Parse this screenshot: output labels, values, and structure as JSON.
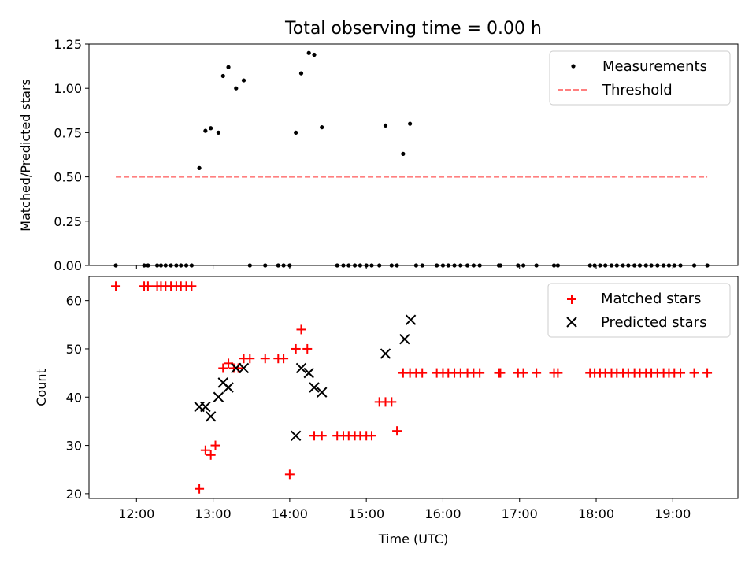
{
  "chart_data": [
    {
      "type": "scatter",
      "title": "Total observing time = 0.00 h",
      "xlabel": "",
      "ylabel": "Matched/Predicted stars",
      "xlim": [
        11.38,
        19.85
      ],
      "ylim": [
        0,
        1.25
      ],
      "yticks": [
        0,
        0.25,
        0.5,
        0.75,
        1.0,
        1.25
      ],
      "ytick_labels": [
        "0.00",
        "0.25",
        "0.50",
        "0.75",
        "1.00",
        "1.25"
      ],
      "xticks": [
        12,
        13,
        14,
        15,
        16,
        17,
        18,
        19
      ],
      "legend_position": "top-right",
      "series": [
        {
          "name": "Measurements",
          "marker": "dot",
          "color": "#000000",
          "x": [
            11.73,
            12.1,
            12.15,
            12.27,
            12.32,
            12.38,
            12.45,
            12.52,
            12.58,
            12.65,
            12.72,
            12.82,
            12.9,
            12.97,
            13.07,
            13.13,
            13.2,
            13.3,
            13.4,
            13.48,
            13.68,
            13.85,
            13.92,
            14.0,
            14.08,
            14.15,
            14.25,
            14.32,
            14.42,
            14.62,
            14.7,
            14.77,
            14.85,
            14.92,
            15.0,
            15.07,
            15.17,
            15.25,
            15.33,
            15.4,
            15.48,
            15.57,
            15.65,
            15.73,
            15.92,
            16.0,
            16.07,
            16.15,
            16.23,
            16.32,
            16.4,
            16.48,
            16.73,
            16.75,
            16.98,
            17.05,
            17.22,
            17.45,
            17.5,
            17.92,
            17.98,
            18.05,
            18.12,
            18.2,
            18.27,
            18.35,
            18.42,
            18.5,
            18.57,
            18.65,
            18.72,
            18.8,
            18.88,
            18.95,
            19.02,
            19.1,
            19.28,
            19.45
          ],
          "y": [
            0,
            0,
            0,
            0,
            0,
            0,
            0,
            0,
            0,
            0,
            0,
            0.55,
            0.76,
            0.775,
            0.75,
            1.07,
            1.12,
            1.0,
            1.045,
            0,
            0,
            0,
            0,
            0,
            0.75,
            1.085,
            1.2,
            1.19,
            0.78,
            0,
            0,
            0,
            0,
            0,
            0,
            0,
            0,
            0.79,
            0,
            0,
            0.63,
            0.8,
            0,
            0,
            0,
            0,
            0,
            0,
            0,
            0,
            0,
            0,
            0,
            0,
            0,
            0,
            0,
            0,
            0,
            0,
            0,
            0,
            0,
            0,
            0,
            0,
            0,
            0,
            0,
            0,
            0,
            0,
            0,
            0,
            0,
            0,
            0,
            0
          ]
        },
        {
          "name": "Threshold",
          "marker": "dashed-line",
          "color": "#ff7f7f",
          "x": [
            11.73,
            19.45
          ],
          "y": [
            0.5,
            0.5
          ]
        }
      ]
    },
    {
      "type": "scatter",
      "title": "",
      "xlabel": "Time (UTC)",
      "ylabel": "Count",
      "xlim": [
        11.38,
        19.85
      ],
      "ylim": [
        19,
        65
      ],
      "yticks": [
        20,
        30,
        40,
        50,
        60
      ],
      "ytick_labels": [
        "20",
        "30",
        "40",
        "50",
        "60"
      ],
      "xticks": [
        12,
        13,
        14,
        15,
        16,
        17,
        18,
        19
      ],
      "xtick_labels": [
        "12:00",
        "13:00",
        "14:00",
        "15:00",
        "16:00",
        "17:00",
        "18:00",
        "19:00"
      ],
      "legend_position": "top-right",
      "series": [
        {
          "name": "Matched stars",
          "marker": "plus",
          "color": "#ff0000",
          "x": [
            11.73,
            12.1,
            12.15,
            12.27,
            12.32,
            12.38,
            12.45,
            12.52,
            12.58,
            12.65,
            12.72,
            12.82,
            12.9,
            12.97,
            13.03,
            13.13,
            13.2,
            13.27,
            13.33,
            13.4,
            13.48,
            13.68,
            13.85,
            13.92,
            14.0,
            14.08,
            14.15,
            14.23,
            14.32,
            14.42,
            14.62,
            14.7,
            14.77,
            14.85,
            14.92,
            15.0,
            15.07,
            15.17,
            15.25,
            15.33,
            15.4,
            15.48,
            15.57,
            15.65,
            15.73,
            15.92,
            16.0,
            16.07,
            16.15,
            16.23,
            16.32,
            16.4,
            16.48,
            16.73,
            16.75,
            16.98,
            17.05,
            17.22,
            17.45,
            17.5,
            17.92,
            17.98,
            18.05,
            18.12,
            18.2,
            18.27,
            18.35,
            18.42,
            18.5,
            18.57,
            18.65,
            18.72,
            18.8,
            18.88,
            18.95,
            19.02,
            19.1,
            19.28,
            19.45
          ],
          "y": [
            63,
            63,
            63,
            63,
            63,
            63,
            63,
            63,
            63,
            63,
            63,
            21,
            29,
            28,
            30,
            46,
            47,
            46,
            46,
            48,
            48,
            48,
            48,
            48,
            24,
            50,
            54,
            50,
            32,
            32,
            32,
            32,
            32,
            32,
            32,
            32,
            32,
            39,
            39,
            39,
            33,
            45,
            45,
            45,
            45,
            45,
            45,
            45,
            45,
            45,
            45,
            45,
            45,
            45,
            45,
            45,
            45,
            45,
            45,
            45,
            45,
            45,
            45,
            45,
            45,
            45,
            45,
            45,
            45,
            45,
            45,
            45,
            45,
            45,
            45,
            45,
            45,
            45,
            45
          ]
        },
        {
          "name": "Predicted stars",
          "marker": "x",
          "color": "#000000",
          "x": [
            12.82,
            12.9,
            12.97,
            13.07,
            13.13,
            13.2,
            13.3,
            13.4,
            14.08,
            14.15,
            14.25,
            14.32,
            14.42,
            15.25,
            15.5,
            15.58
          ],
          "y": [
            38,
            38,
            36,
            40,
            43,
            42,
            46,
            46,
            32,
            46,
            45,
            42,
            41,
            49,
            52,
            56
          ]
        }
      ]
    }
  ]
}
